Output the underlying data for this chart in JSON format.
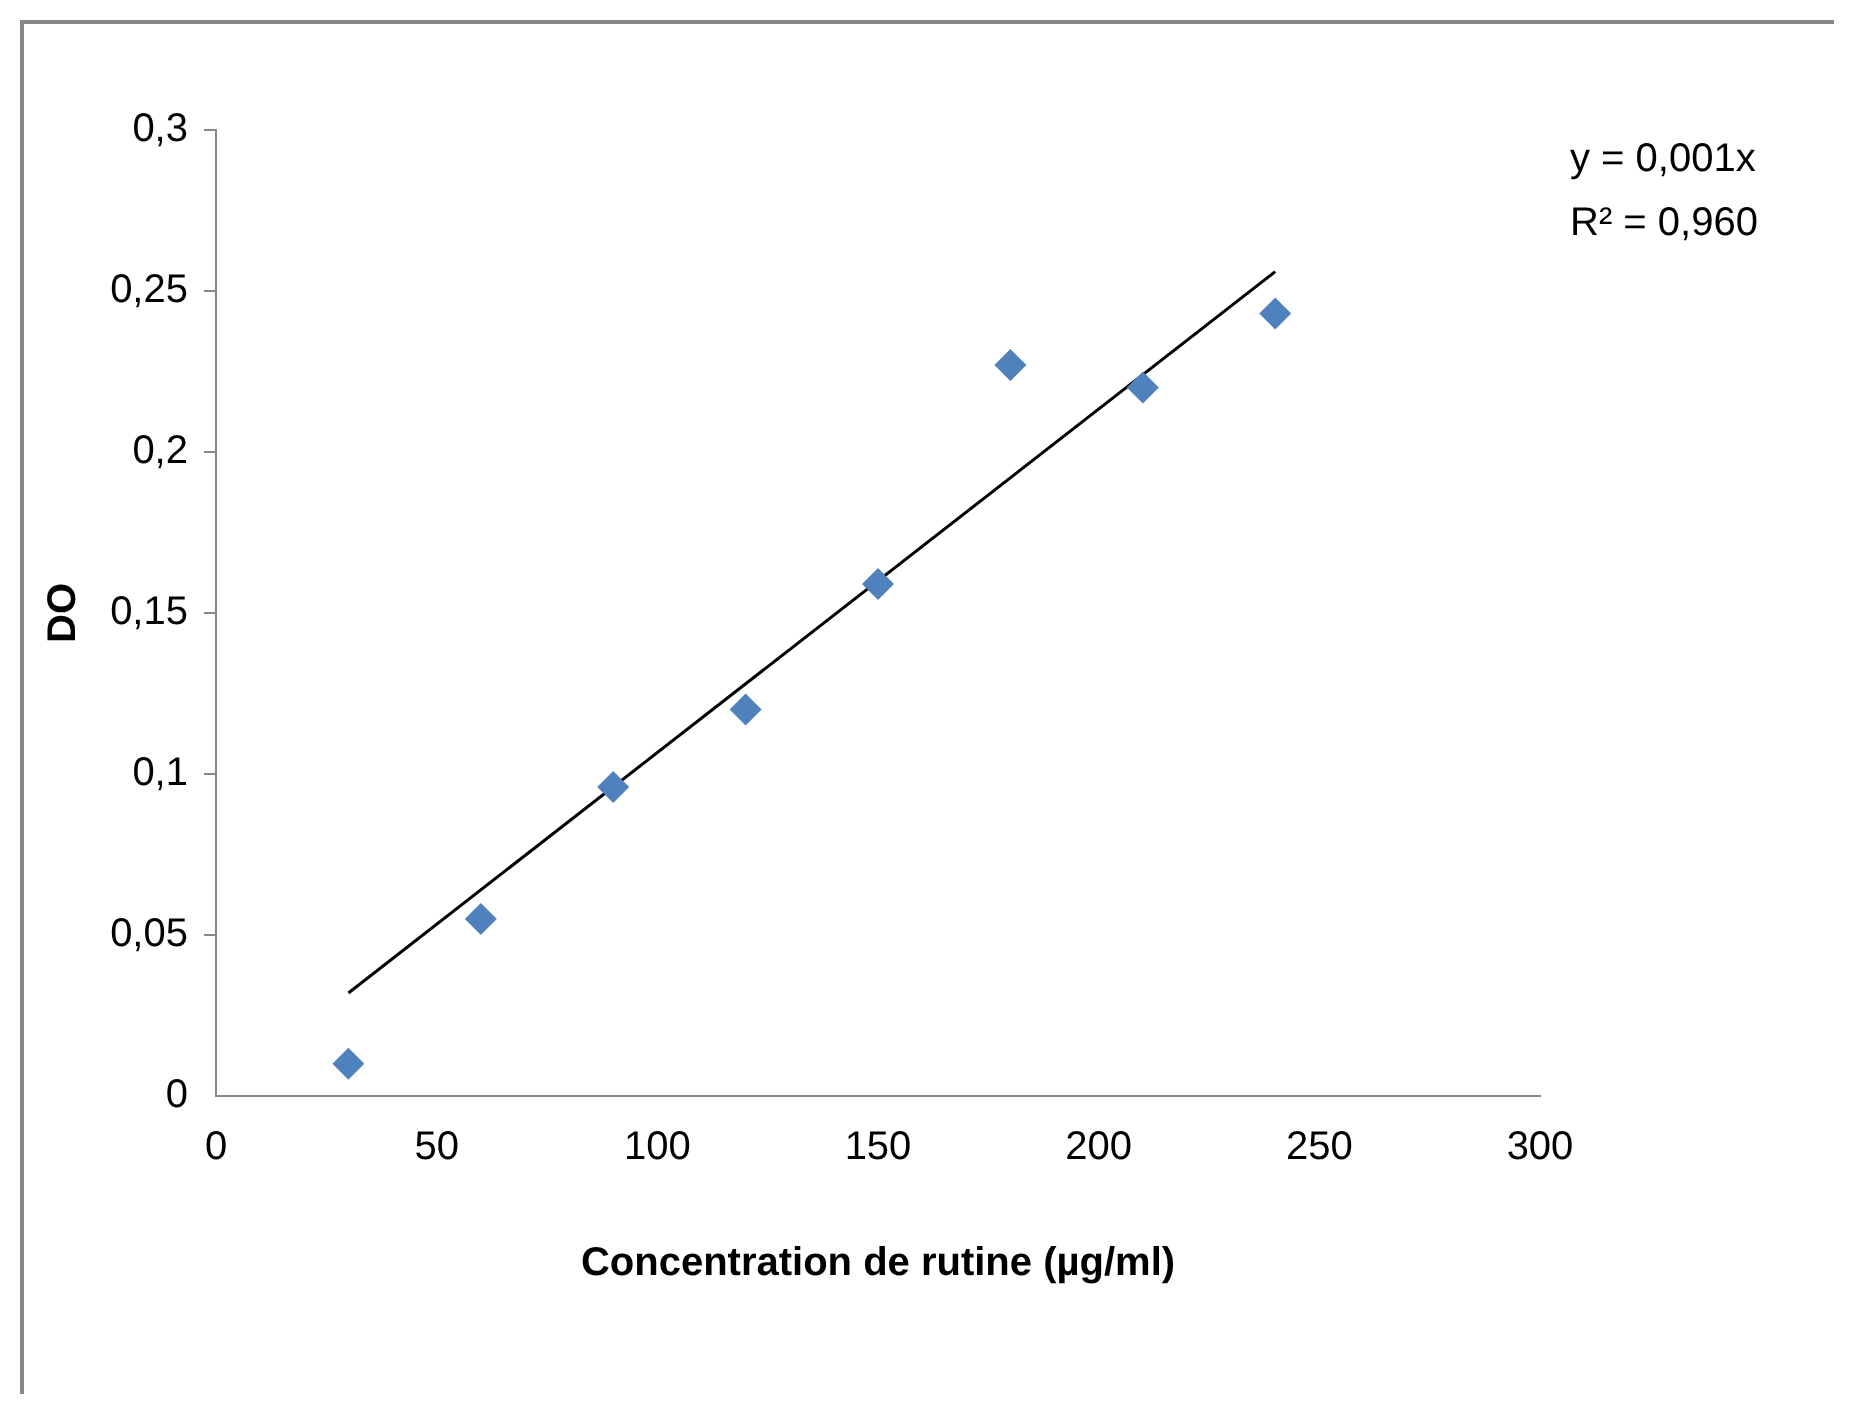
{
  "chart_data": {
    "type": "scatter",
    "xlabel": "Concentration de rutine (µg/ml)",
    "ylabel": "DO",
    "series": [
      {
        "type": "scatter",
        "color": "#4f81bd",
        "marker": "diamond",
        "x": [
          30,
          60,
          90,
          120,
          150,
          180,
          210,
          240
        ],
        "values": [
          0.01,
          0.055,
          0.096,
          0.12,
          0.159,
          0.227,
          0.22,
          0.243
        ]
      },
      {
        "type": "line",
        "color": "#000000",
        "marker": "none",
        "x": [
          30,
          240
        ],
        "values": [
          0.032,
          0.256
        ]
      }
    ],
    "xlim": [
      0,
      300
    ],
    "xticks": [
      0,
      50,
      100,
      150,
      200,
      250,
      300
    ],
    "ylim": [
      0,
      0.3
    ],
    "yticks": [
      0,
      {
        "value": 0.05,
        "label": "0,05"
      },
      {
        "value": 0.1,
        "label": "0,1"
      },
      {
        "value": 0.15,
        "label": "0,15"
      },
      {
        "value": 0.2,
        "label": "0,2"
      },
      {
        "value": 0.25,
        "label": "0,25"
      },
      {
        "value": 0.3,
        "label": "0,3"
      }
    ],
    "annotations": [
      "y = 0,001x",
      "R² = 0,960"
    ],
    "grid": false,
    "legend": false
  }
}
